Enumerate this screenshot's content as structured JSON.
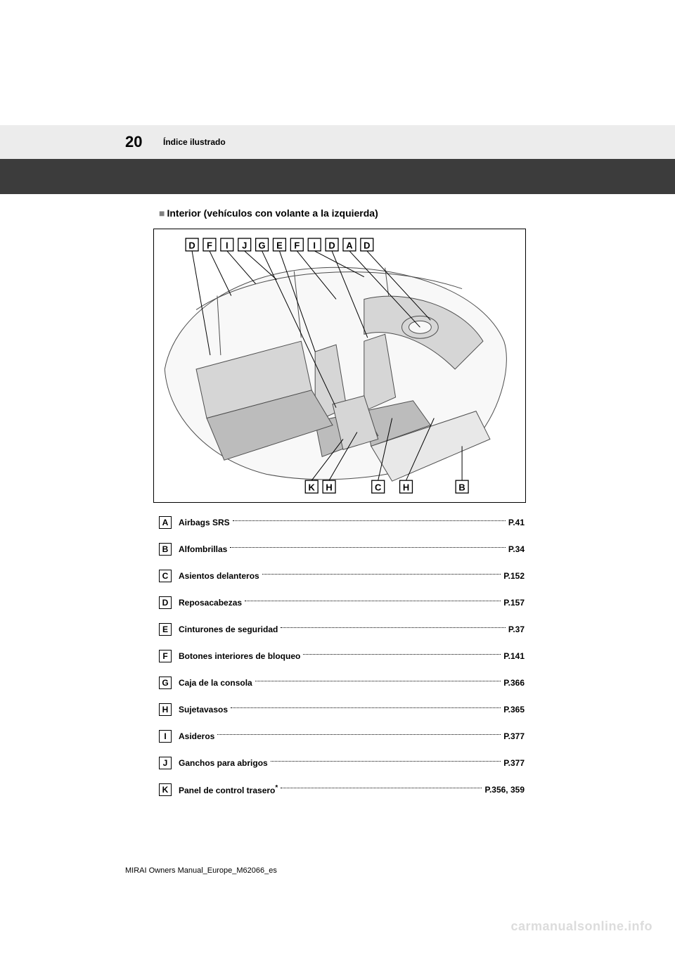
{
  "header": {
    "page_number": "20",
    "section": "Índice ilustrado"
  },
  "subheading": "Interior (vehículos con volante a la izquierda)",
  "diagram": {
    "top_callouts": [
      "D",
      "F",
      "I",
      "J",
      "G",
      "E",
      "F",
      "I",
      "D",
      "A",
      "D"
    ],
    "bottom_callouts": [
      "K",
      "H",
      "C",
      "H",
      "B"
    ],
    "bottom_positions": [
      225,
      250,
      320,
      360,
      440
    ],
    "stroke_color": "#4d4d4d",
    "fill_light": "#d6d6d6",
    "fill_mid": "#bcbcbc"
  },
  "index": [
    {
      "letter": "A",
      "label": "Airbags SRS",
      "page": "P.41",
      "asterisk": false
    },
    {
      "letter": "B",
      "label": "Alfombrillas",
      "page": "P.34",
      "asterisk": false
    },
    {
      "letter": "C",
      "label": "Asientos delanteros",
      "page": "P.152",
      "asterisk": false
    },
    {
      "letter": "D",
      "label": "Reposacabezas",
      "page": "P.157",
      "asterisk": false
    },
    {
      "letter": "E",
      "label": "Cinturones de seguridad",
      "page": "P.37",
      "asterisk": false
    },
    {
      "letter": "F",
      "label": "Botones interiores de bloqueo",
      "page": "P.141",
      "asterisk": false
    },
    {
      "letter": "G",
      "label": "Caja de la consola",
      "page": "P.366",
      "asterisk": false
    },
    {
      "letter": "H",
      "label": "Sujetavasos",
      "page": "P.365",
      "asterisk": false
    },
    {
      "letter": "I",
      "label": "Asideros",
      "page": "P.377",
      "asterisk": false
    },
    {
      "letter": "J",
      "label": "Ganchos para abrigos",
      "page": "P.377",
      "asterisk": false
    },
    {
      "letter": "K",
      "label": "Panel de control trasero",
      "page": "P.356, 359",
      "asterisk": true
    }
  ],
  "footer": "MIRAI Owners Manual_Europe_M62066_es",
  "watermark": "carmanualsonline.info"
}
